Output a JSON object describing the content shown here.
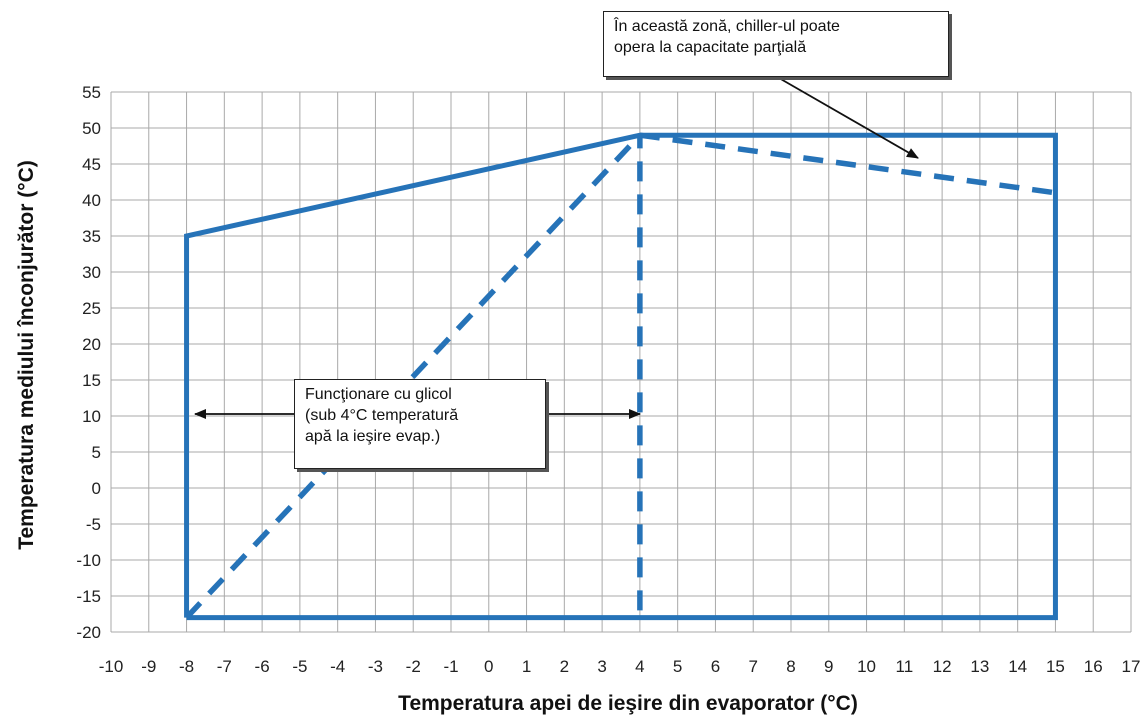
{
  "chart_data": {
    "type": "line",
    "title": "",
    "xlabel": "Temperatura apei de ieşire din evaporator (°C)",
    "ylabel": "Temperatura mediului înconjurător (°C)",
    "xlim": [
      -10,
      17
    ],
    "ylim": [
      -20,
      55
    ],
    "x_ticks": [
      "-10",
      "-9",
      "-8",
      "-7",
      "-6",
      "-5",
      "-4",
      "-3",
      "-2",
      "-1",
      "0",
      "1",
      "2",
      "3",
      "4",
      "5",
      "6",
      "7",
      "8",
      "9",
      "10",
      "11",
      "12",
      "13",
      "14",
      "15",
      "16",
      "17"
    ],
    "y_ticks": [
      "55",
      "50",
      "45",
      "40",
      "35",
      "30",
      "25",
      "20",
      "15",
      "10",
      "5",
      "0",
      "-5",
      "-10",
      "-15",
      "-20"
    ],
    "grid": true,
    "series": [
      {
        "style": "solid",
        "color": "#2673b8",
        "x": [
          -8,
          -8,
          4,
          15,
          15,
          -8
        ],
        "y": [
          -18,
          35,
          49,
          49,
          -18,
          -18
        ]
      },
      {
        "style": "dashed",
        "color": "#2673b8",
        "x": [
          -8,
          4
        ],
        "y": [
          -18,
          49
        ]
      },
      {
        "style": "dashed",
        "color": "#2673b8",
        "x": [
          4,
          4
        ],
        "y": [
          -17,
          49
        ]
      },
      {
        "style": "dashed",
        "color": "#2673b8",
        "x": [
          4,
          15
        ],
        "y": [
          49,
          41
        ]
      }
    ],
    "annotations": [
      {
        "lines": [
          "În această zonă, chiller-ul poate",
          "opera la capacitate parţială"
        ]
      },
      {
        "lines": [
          "Funcţionare cu glicol",
          "(sub 4°C temperatură",
          "apă la ieşire evap.)"
        ]
      }
    ]
  }
}
